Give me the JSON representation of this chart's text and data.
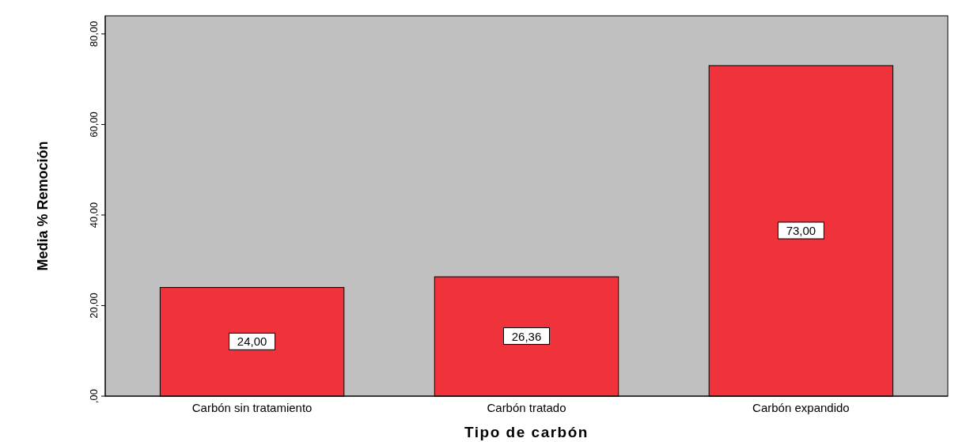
{
  "chart_data": {
    "type": "bar",
    "xlabel": "Tipo de carbón",
    "ylabel": "Media % Remoción",
    "categories": [
      "Carbón sin tratamiento",
      "Carbón tratado",
      "Carbón expandido"
    ],
    "values": [
      24,
      26.36,
      73
    ],
    "color": "#f0333a",
    "value_labels": [
      "24,00",
      "26,36",
      "73,00"
    ],
    "ylim": [
      0,
      84
    ],
    "yticks": [
      {
        "value": 0,
        "label": ",00"
      },
      {
        "value": 20,
        "label": "20,00"
      },
      {
        "value": 40,
        "label": "40,00"
      },
      {
        "value": 60,
        "label": "60,00"
      },
      {
        "value": 80,
        "label": "80,00"
      }
    ],
    "grid": false
  }
}
